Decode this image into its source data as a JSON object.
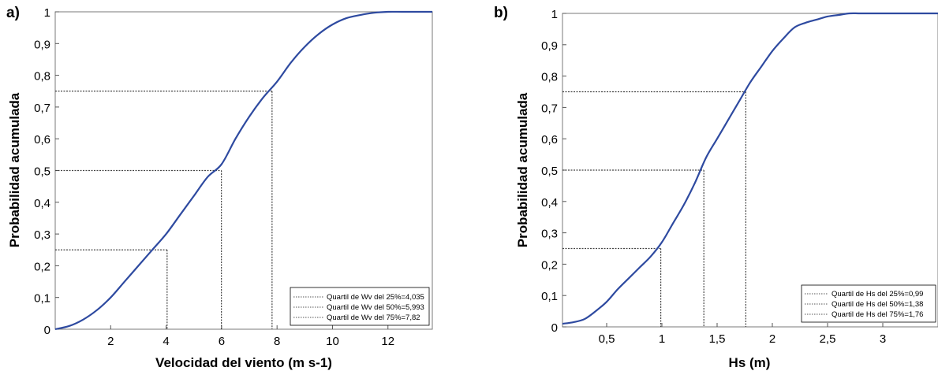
{
  "chart_data": [
    {
      "panel_label": "a)",
      "type": "line",
      "xlabel": "Velocidad del viento (m s-1)",
      "ylabel": "Probabilidad acumulada",
      "xlim": [
        0,
        13.6
      ],
      "ylim": [
        0,
        1
      ],
      "xticks": [
        2,
        4,
        6,
        8,
        10,
        12
      ],
      "xtick_labels": [
        "2",
        "4",
        "6",
        "8",
        "10",
        "12"
      ],
      "yticks": [
        0,
        0.1,
        0.2,
        0.3,
        0.4,
        0.5,
        0.6,
        0.7,
        0.8,
        0.9,
        1
      ],
      "ytick_labels": [
        "0",
        "0,1",
        "0,2",
        "0,3",
        "0,4",
        "0,5",
        "0,6",
        "0,7",
        "0,8",
        "0,9",
        "1"
      ],
      "grid": false,
      "legend_position": "bottom-right",
      "line_color": "#2e4aa0",
      "series": [
        {
          "x": [
            0,
            0.5,
            1,
            1.5,
            2,
            2.5,
            3,
            3.5,
            4,
            4.5,
            5,
            5.5,
            6,
            6.5,
            7,
            7.5,
            8,
            8.5,
            9,
            9.5,
            10,
            10.5,
            11,
            11.5,
            12,
            12.5,
            13,
            13.6
          ],
          "y": [
            0,
            0.01,
            0.03,
            0.06,
            0.1,
            0.15,
            0.2,
            0.25,
            0.3,
            0.36,
            0.42,
            0.48,
            0.52,
            0.6,
            0.67,
            0.73,
            0.78,
            0.84,
            0.89,
            0.93,
            0.96,
            0.98,
            0.99,
            0.997,
            1,
            1,
            1,
            1
          ]
        }
      ],
      "quartiles": [
        {
          "x": 4.035,
          "y": 0.25,
          "label": "Quartil de Wv del 25%=4,035"
        },
        {
          "x": 5.993,
          "y": 0.5,
          "label": "Quartil de Wv del 50%=5,993"
        },
        {
          "x": 7.82,
          "y": 0.75,
          "label": "Quartil de Wv del 75%=7,82"
        }
      ]
    },
    {
      "panel_label": "b)",
      "type": "line",
      "xlabel": "Hs (m)",
      "ylabel": "Probabilidad acumulada",
      "xlim": [
        0.1,
        3.5
      ],
      "ylim": [
        0,
        1
      ],
      "xticks": [
        0.5,
        1,
        1.5,
        2,
        2.5,
        3
      ],
      "xtick_labels": [
        "0,5",
        "1",
        "1,5",
        "2",
        "2,5",
        "3"
      ],
      "yticks": [
        0,
        0.1,
        0.2,
        0.3,
        0.4,
        0.5,
        0.6,
        0.7,
        0.8,
        0.9,
        1
      ],
      "ytick_labels": [
        "0",
        "0,1",
        "0,2",
        "0,3",
        "0,4",
        "0,5",
        "0,6",
        "0,7",
        "0,8",
        "0,9",
        "1"
      ],
      "grid": false,
      "legend_position": "bottom-right",
      "line_color": "#2e4aa0",
      "series": [
        {
          "x": [
            0.1,
            0.2,
            0.3,
            0.4,
            0.5,
            0.6,
            0.7,
            0.8,
            0.9,
            1,
            1.1,
            1.2,
            1.3,
            1.4,
            1.5,
            1.6,
            1.7,
            1.8,
            1.9,
            2,
            2.1,
            2.2,
            2.3,
            2.4,
            2.5,
            2.6,
            2.7,
            2.8,
            3.0,
            3.5
          ],
          "y": [
            0.01,
            0.015,
            0.025,
            0.05,
            0.08,
            0.12,
            0.155,
            0.19,
            0.225,
            0.27,
            0.33,
            0.39,
            0.46,
            0.54,
            0.6,
            0.66,
            0.72,
            0.78,
            0.83,
            0.88,
            0.92,
            0.955,
            0.97,
            0.98,
            0.99,
            0.995,
            1,
            1,
            1,
            1
          ]
        }
      ],
      "quartiles": [
        {
          "x": 0.99,
          "y": 0.25,
          "label": "Quartil de Hs del 25%=0,99"
        },
        {
          "x": 1.38,
          "y": 0.5,
          "label": "Quartil de Hs del 50%=1,38"
        },
        {
          "x": 1.76,
          "y": 0.75,
          "label": "Quartil de Hs del 75%=1,76"
        }
      ]
    }
  ]
}
